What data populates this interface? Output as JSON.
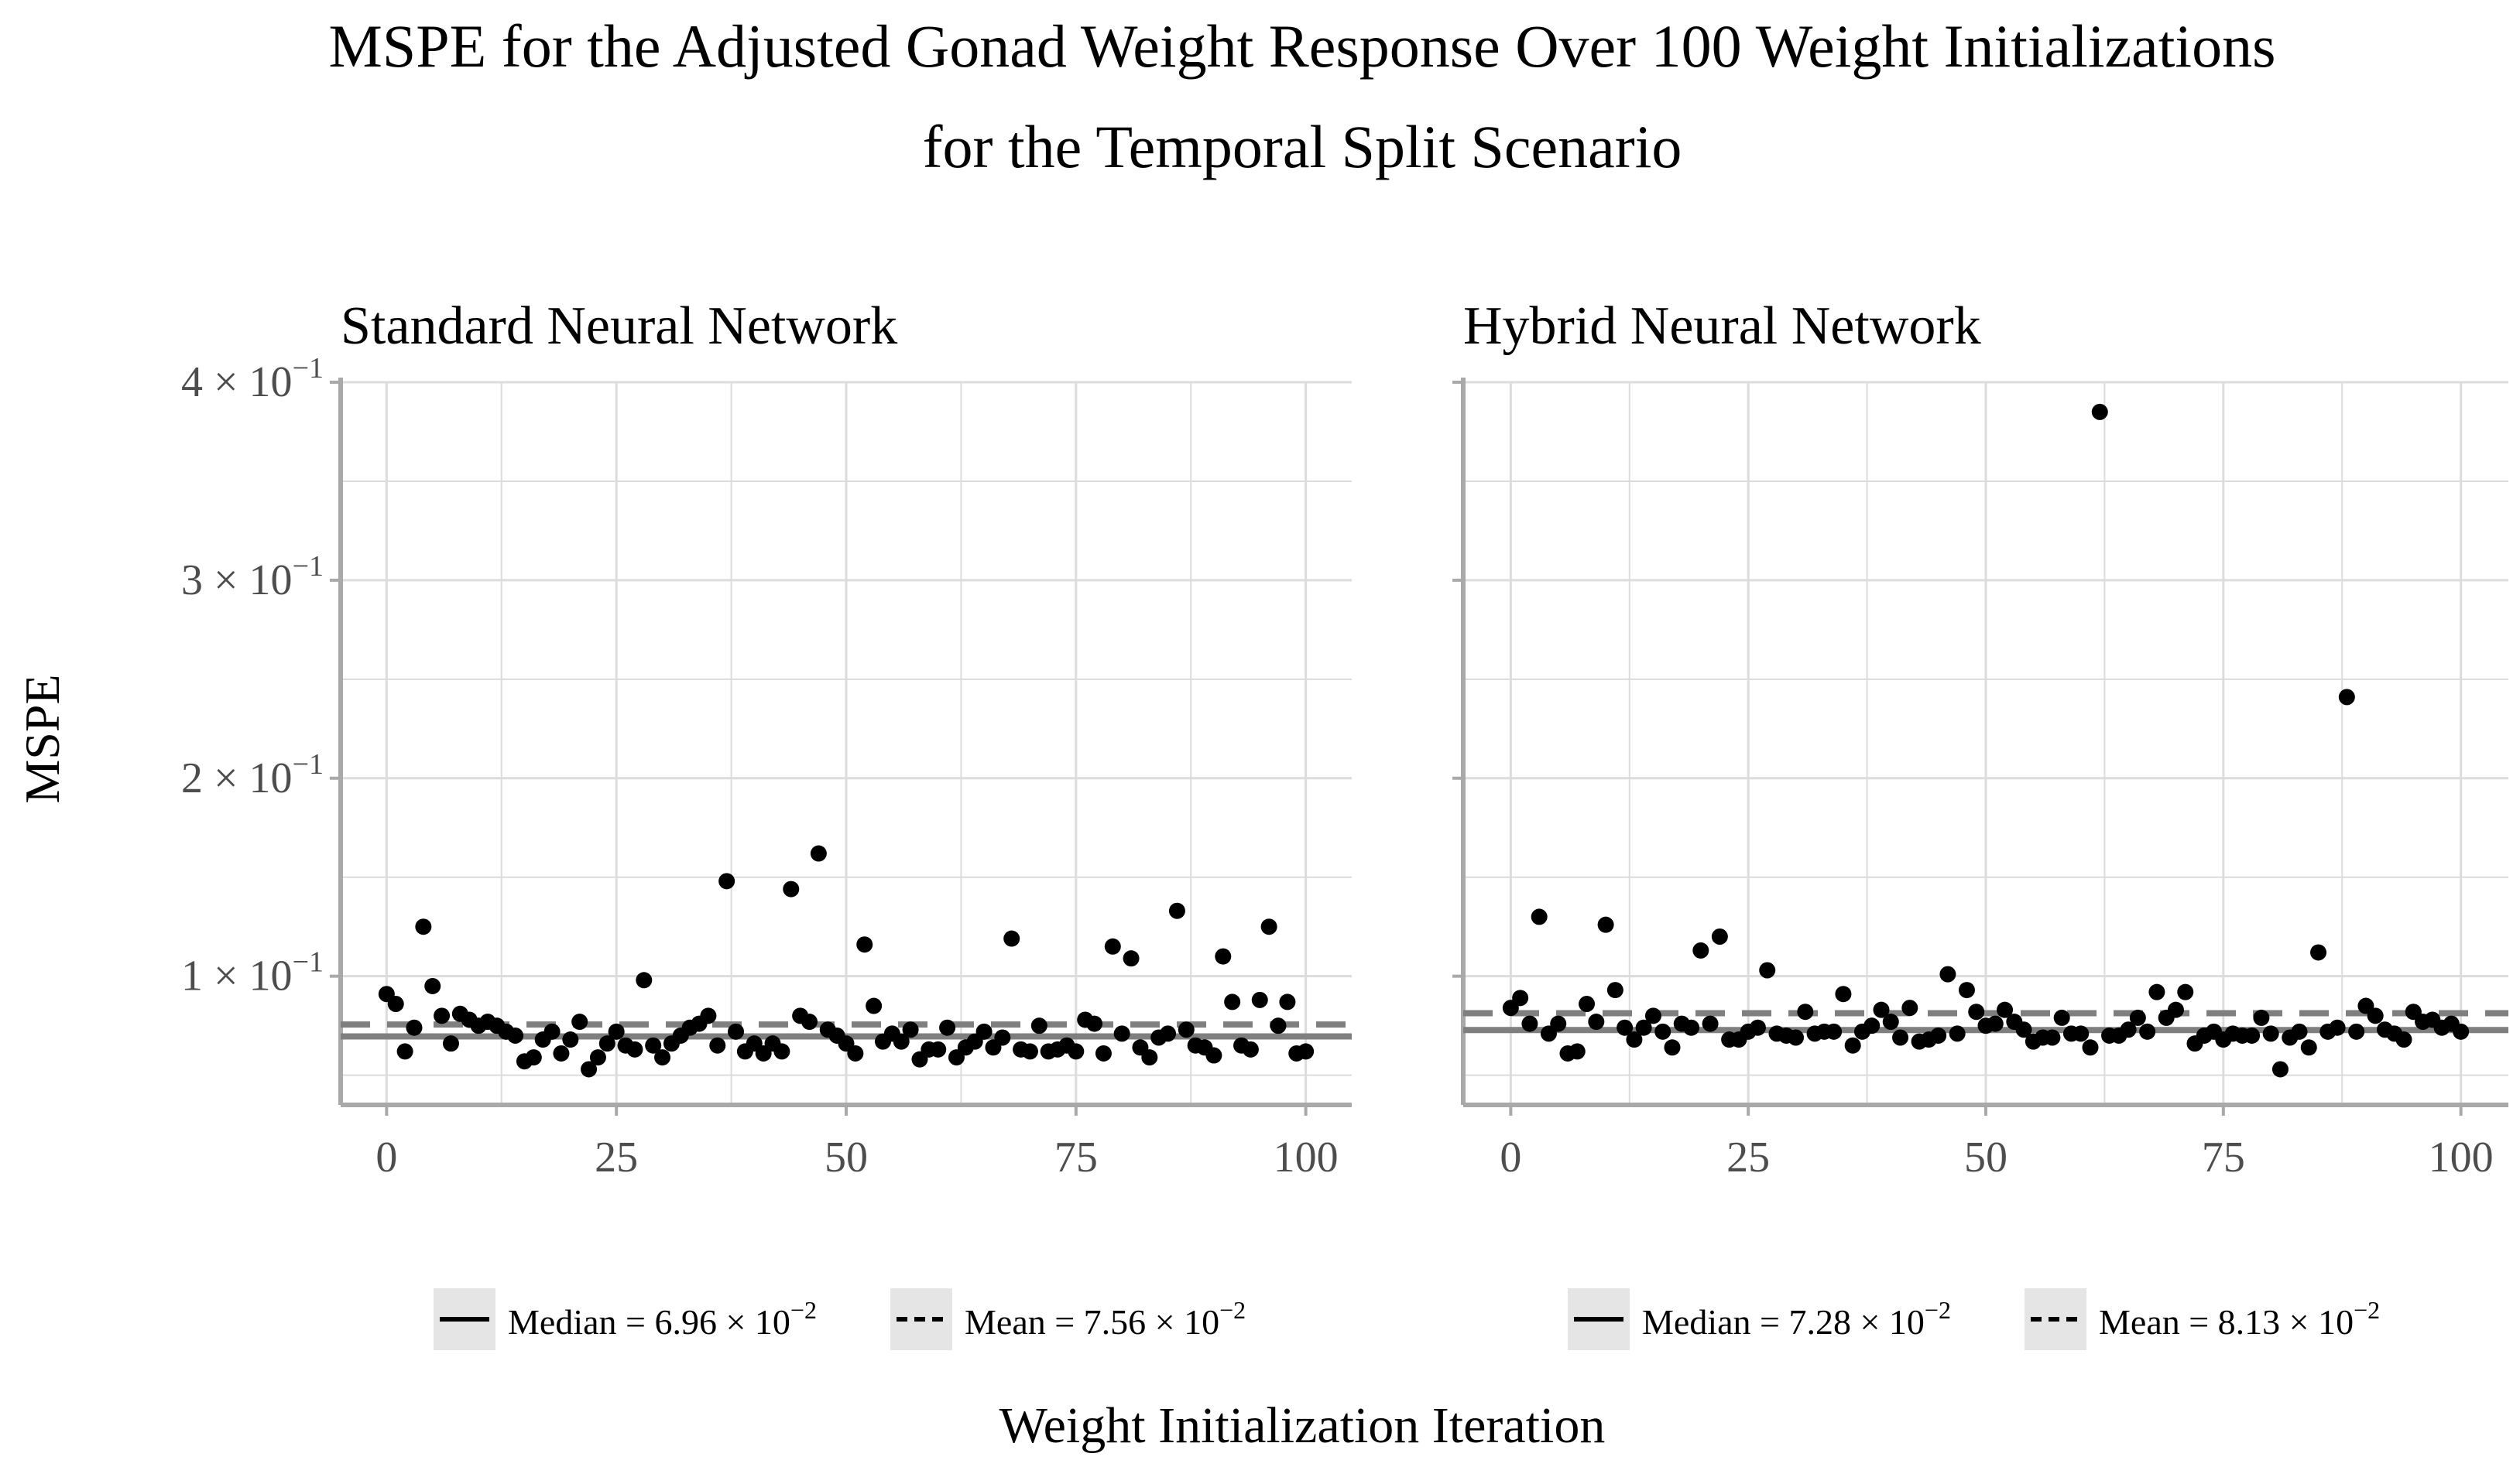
{
  "chart_data": {
    "type": "scatter",
    "title_line1": "MSPE for the Adjusted Gonad Weight Response Over 100 Weight Initializations",
    "title_line2": "for the Temporal Split Scenario",
    "xlabel": "Weight Initialization Iteration",
    "ylabel": "MSPE",
    "xlim": [
      -5,
      105
    ],
    "ylim": [
      0.035,
      0.4
    ],
    "x_ticks": [
      0,
      25,
      50,
      75,
      100
    ],
    "y_ticks": [
      {
        "value": 0.1,
        "mantissa": "1 × 10",
        "exp": "−1"
      },
      {
        "value": 0.2,
        "mantissa": "2 × 10",
        "exp": "−1"
      },
      {
        "value": 0.3,
        "mantissa": "3 × 10",
        "exp": "−1"
      },
      {
        "value": 0.4,
        "mantissa": "4 × 10",
        "exp": "−1"
      }
    ],
    "colors": {
      "points": "#000000",
      "ref_line": "#7f7f7f",
      "grid": "#dcdcdc",
      "axis": "#a9a9a9",
      "legend_key": "#e5e5e5"
    },
    "panels": [
      {
        "title": "Standard Neural Network",
        "median": 0.0696,
        "mean": 0.0756,
        "legend_median": {
          "prefix": "Median = 6.96 × 10",
          "exp": "−2"
        },
        "legend_mean": {
          "prefix": "Mean = 7.56 × 10",
          "exp": "−2"
        },
        "values": [
          0.091,
          0.086,
          0.062,
          0.074,
          0.125,
          0.095,
          0.08,
          0.066,
          0.081,
          0.078,
          0.075,
          0.077,
          0.075,
          0.072,
          0.07,
          0.057,
          0.059,
          0.068,
          0.072,
          0.061,
          0.068,
          0.077,
          0.053,
          0.059,
          0.066,
          0.072,
          0.065,
          0.063,
          0.098,
          0.065,
          0.059,
          0.066,
          0.07,
          0.074,
          0.076,
          0.08,
          0.065,
          0.148,
          0.072,
          0.062,
          0.066,
          0.061,
          0.066,
          0.062,
          0.144,
          0.08,
          0.077,
          0.162,
          0.073,
          0.07,
          0.066,
          0.061,
          0.116,
          0.085,
          0.067,
          0.071,
          0.067,
          0.073,
          0.058,
          0.063,
          0.063,
          0.074,
          0.059,
          0.064,
          0.067,
          0.072,
          0.064,
          0.069,
          0.119,
          0.063,
          0.062,
          0.075,
          0.062,
          0.063,
          0.065,
          0.062,
          0.078,
          0.076,
          0.061,
          0.115,
          0.071,
          0.109,
          0.064,
          0.059,
          0.069,
          0.071,
          0.133,
          0.073,
          0.065,
          0.064,
          0.06,
          0.11,
          0.087,
          0.065,
          0.063,
          0.088,
          0.125,
          0.075,
          0.087,
          0.061,
          0.062
        ]
      },
      {
        "title": "Hybrid Neural Network",
        "median": 0.0728,
        "mean": 0.0813,
        "legend_median": {
          "prefix": "Median = 7.28 × 10",
          "exp": "−2"
        },
        "legend_mean": {
          "prefix": "Mean = 8.13 × 10",
          "exp": "−2"
        },
        "values": [
          0.084,
          0.089,
          0.076,
          0.13,
          0.071,
          0.076,
          0.061,
          0.062,
          0.086,
          0.077,
          0.126,
          0.093,
          0.074,
          0.068,
          0.074,
          0.08,
          0.072,
          0.064,
          0.076,
          0.074,
          0.113,
          0.076,
          0.12,
          0.068,
          0.068,
          0.072,
          0.074,
          0.103,
          0.071,
          0.07,
          0.069,
          0.082,
          0.071,
          0.072,
          0.072,
          0.091,
          0.065,
          0.072,
          0.075,
          0.083,
          0.077,
          0.069,
          0.084,
          0.067,
          0.068,
          0.07,
          0.101,
          0.071,
          0.093,
          0.082,
          0.075,
          0.076,
          0.083,
          0.077,
          0.073,
          0.067,
          0.069,
          0.069,
          0.079,
          0.071,
          0.071,
          0.064,
          0.385,
          0.07,
          0.07,
          0.073,
          0.079,
          0.072,
          0.092,
          0.079,
          0.083,
          0.092,
          0.066,
          0.07,
          0.072,
          0.068,
          0.071,
          0.07,
          0.07,
          0.079,
          0.071,
          0.053,
          0.069,
          0.072,
          0.064,
          0.112,
          0.072,
          0.074,
          0.241,
          0.072,
          0.085,
          0.08,
          0.073,
          0.071,
          0.068,
          0.082,
          0.077,
          0.078,
          0.074,
          0.076,
          0.072
        ]
      }
    ]
  }
}
